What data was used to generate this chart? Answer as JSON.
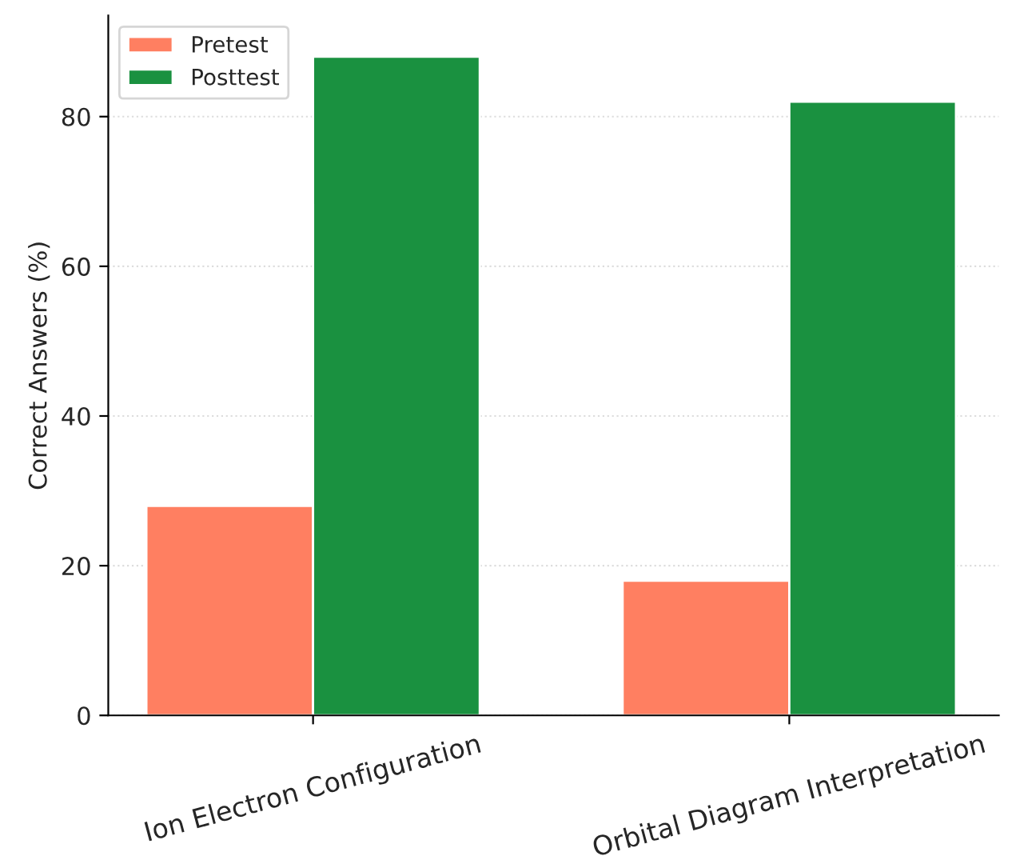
{
  "chart_data": {
    "type": "bar",
    "ylabel": "Correct Answers (%)",
    "categories": [
      "Ion Electron Configuration",
      "Orbital Diagram Interpretation"
    ],
    "series": [
      {
        "name": "Pretest",
        "color": "#ff7f61",
        "values": [
          28,
          18
        ]
      },
      {
        "name": "Posttest",
        "color": "#1a9140",
        "values": [
          88,
          82
        ]
      }
    ],
    "ylim": [
      0,
      93.5
    ],
    "yticks": [
      0,
      20,
      40,
      60,
      80
    ],
    "grid": "y",
    "legend": "top left"
  }
}
